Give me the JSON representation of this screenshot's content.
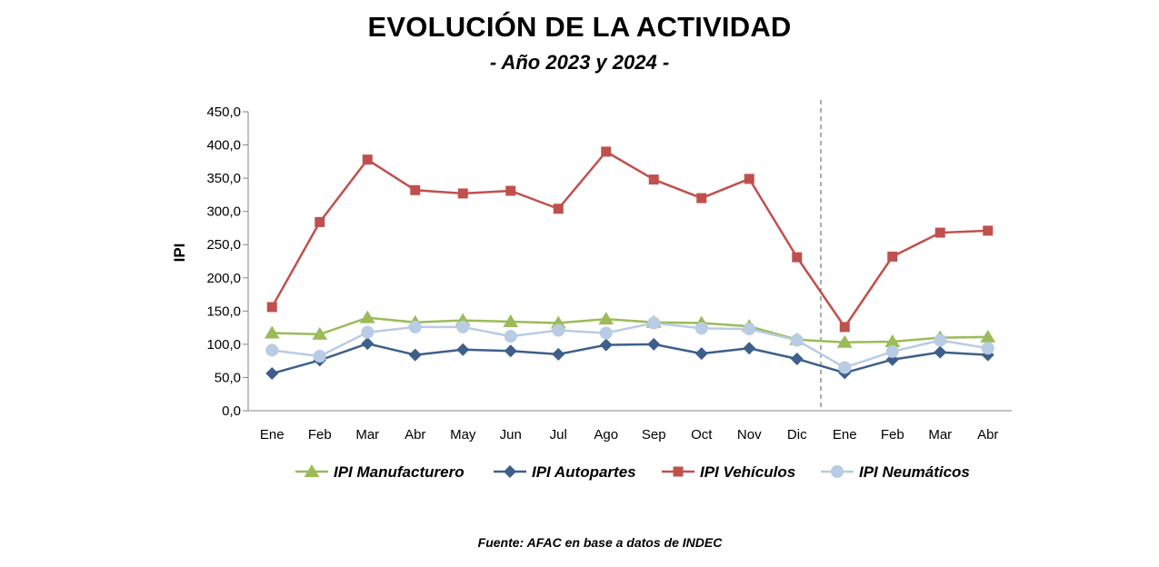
{
  "chart_data": {
    "type": "line",
    "title": "EVOLUCIÓN DE LA ACTIVIDAD",
    "subtitle": "- Año 2023 y 2024 -",
    "ylabel": "IPI",
    "xlabel": "",
    "ylim": [
      0,
      450
    ],
    "yticks": [
      "0,0",
      "50,0",
      "100,0",
      "150,0",
      "200,0",
      "250,0",
      "300,0",
      "350,0",
      "400,0",
      "450,0"
    ],
    "categories": [
      "Ene",
      "Feb",
      "Mar",
      "Abr",
      "May",
      "Jun",
      "Jul",
      "Ago",
      "Sep",
      "Oct",
      "Nov",
      "Dic",
      "Ene",
      "Feb",
      "Mar",
      "Abr"
    ],
    "year_divider_after": "Dic",
    "grid": false,
    "legend_position": "bottom",
    "series": [
      {
        "name": "IPI Manufacturero",
        "marker": "triangle",
        "color": "#9bbb59",
        "values": [
          117,
          115,
          140,
          133,
          136,
          134,
          132,
          138,
          133,
          132,
          127,
          107,
          103,
          104,
          110,
          111
        ]
      },
      {
        "name": "IPI Autopartes",
        "marker": "diamond",
        "color": "#3d5f8b",
        "values": [
          56,
          76,
          101,
          84,
          92,
          90,
          85,
          99,
          100,
          86,
          94,
          78,
          57,
          77,
          88,
          84
        ]
      },
      {
        "name": "IPI Vehículos",
        "marker": "square",
        "color": "#c0504d",
        "values": [
          156,
          284,
          378,
          332,
          327,
          331,
          304,
          390,
          348,
          320,
          349,
          231,
          126,
          232,
          268,
          271
        ]
      },
      {
        "name": "IPI Neumáticos",
        "marker": "circle",
        "color": "#b8cce4",
        "values": [
          91,
          82,
          118,
          126,
          126,
          112,
          121,
          117,
          132,
          124,
          123,
          106,
          65,
          89,
          106,
          94
        ]
      }
    ]
  },
  "source": "Fuente: AFAC en base a datos de INDEC"
}
